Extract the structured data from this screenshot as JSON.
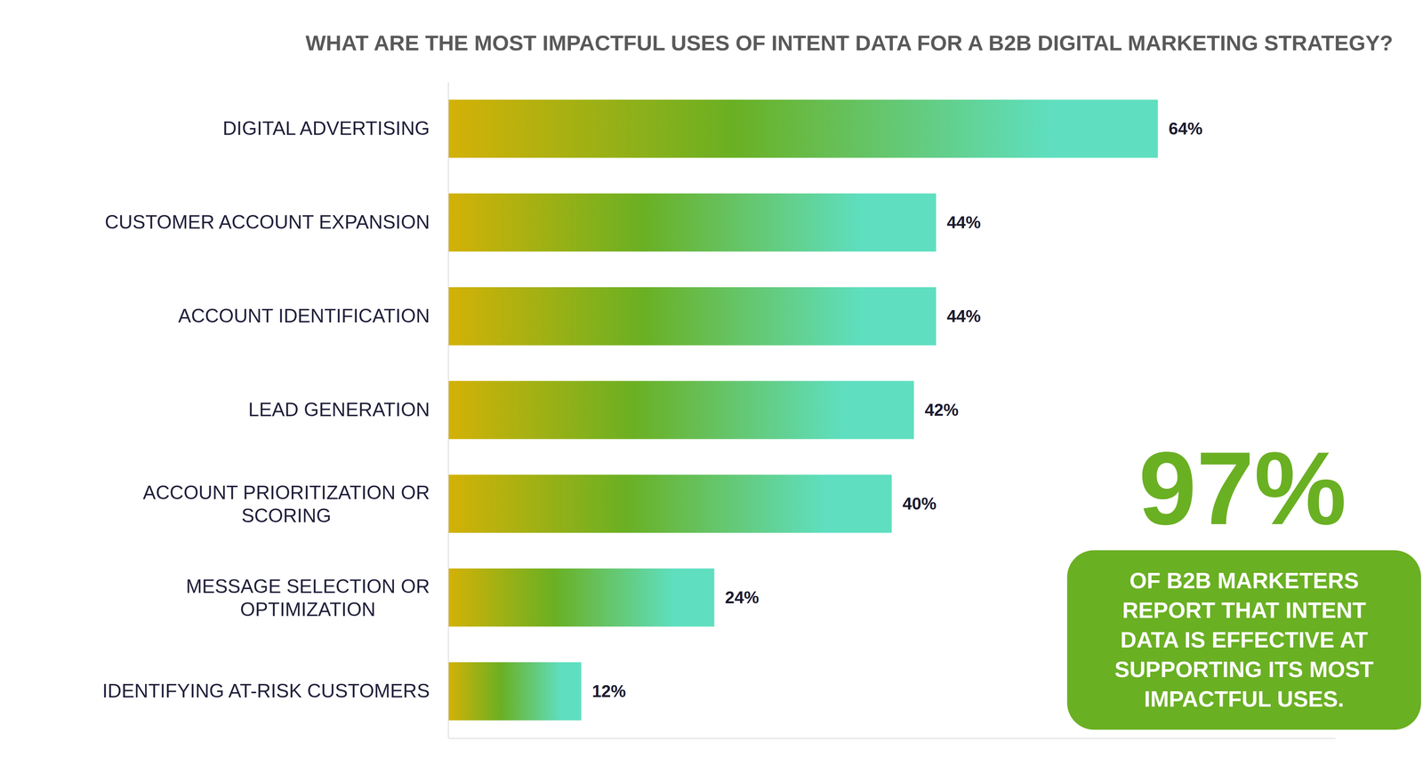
{
  "chart_data": {
    "type": "bar",
    "title": "WHAT ARE THE MOST IMPACTFUL USES OF INTENT DATA FOR A B2B DIGITAL MARKETING STRATEGY?",
    "orientation": "horizontal",
    "categories": [
      "DIGITAL ADVERTISING",
      "CUSTOMER ACCOUNT EXPANSION",
      "ACCOUNT IDENTIFICATION",
      "LEAD GENERATION",
      "ACCOUNT PRIORITIZATION OR\nSCORING",
      "MESSAGE SELECTION OR\nOPTIMIZATION",
      "IDENTIFYING AT-RISK CUSTOMERS"
    ],
    "values": [
      64,
      44,
      44,
      42,
      40,
      24,
      12
    ],
    "value_labels": [
      "64%",
      "44%",
      "44%",
      "42%",
      "40%",
      "24%",
      "12%"
    ],
    "color": "#6ab023",
    "xlim": [
      0,
      80
    ],
    "grid": false,
    "data_labels": true,
    "tick_labels": "y",
    "annotations": [
      {
        "text": "97%"
      },
      {
        "text": "OF B2B MARKETERS\nREPORT THAT INTENT\nDATA IS EFFECTIVE AT\nSUPPORTING ITS MOST\nIMPACTFUL USES."
      }
    ]
  }
}
